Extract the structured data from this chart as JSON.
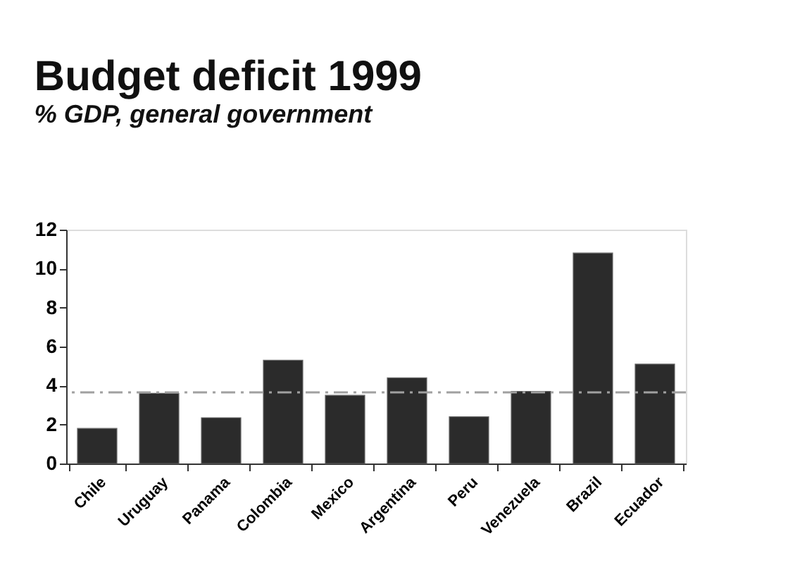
{
  "chart_data": {
    "type": "bar",
    "title": "Budget deficit 1999",
    "subtitle": "% GDP, general government",
    "categories": [
      "Chile",
      "Uruguay",
      "Panama",
      "Colombia",
      "Mexico",
      "Argentina",
      "Peru",
      "Venezuela",
      "Brazil",
      "Ecuador"
    ],
    "values": [
      1.8,
      3.6,
      2.35,
      5.3,
      3.5,
      4.4,
      2.4,
      3.7,
      10.8,
      5.1
    ],
    "color": "#2b2b2b",
    "ylim": [
      0,
      12
    ],
    "yticks": [
      0,
      2,
      4,
      6,
      8,
      10,
      12
    ],
    "grid": false,
    "ref_lines": [
      {
        "axis": "y",
        "value": 3.65,
        "label": null,
        "color": "#a0a0a0",
        "line_style": "dashdot"
      }
    ]
  }
}
